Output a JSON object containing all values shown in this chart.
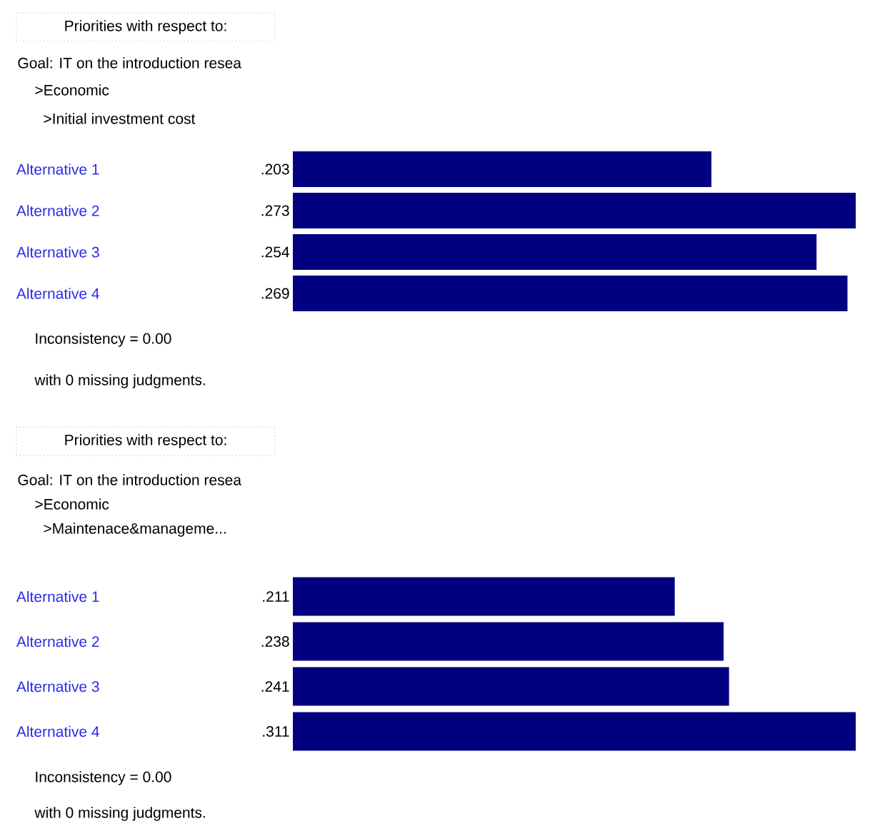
{
  "chart_data": [
    {
      "type": "bar",
      "orientation": "horizontal",
      "title": "Priorities with respect to:",
      "subtitle": "Goal: IT on the introduction resea",
      "annotations": [
        ">Economic",
        ">Initial investment cost",
        "Inconsistency = 0.00",
        "with 0  missing judgments."
      ],
      "categories": [
        "Alternative 1",
        "Alternative 2",
        "Alternative 3",
        "Alternative 4"
      ],
      "values": [
        0.203,
        0.273,
        0.254,
        0.269
      ],
      "value_labels": [
        ".203",
        ".273",
        ".254",
        ".269"
      ],
      "color": "#000080",
      "xlim": [
        0,
        0.273
      ],
      "tick_labels": "y"
    },
    {
      "type": "bar",
      "orientation": "horizontal",
      "title": "Priorities with respect to:",
      "subtitle": "Goal: IT on the introduction resea",
      "annotations": [
        ">Economic",
        ">Maintenace&manageme...",
        "Inconsistency = 0.00",
        "with 0  missing judgments."
      ],
      "categories": [
        "Alternative 1",
        "Alternative 2",
        "Alternative 3",
        "Alternative 4"
      ],
      "values": [
        0.211,
        0.238,
        0.241,
        0.311
      ],
      "value_labels": [
        ".211",
        ".238",
        ".241",
        ".311"
      ],
      "color": "#000080",
      "xlim": [
        0,
        0.311
      ],
      "tick_labels": "y"
    }
  ]
}
